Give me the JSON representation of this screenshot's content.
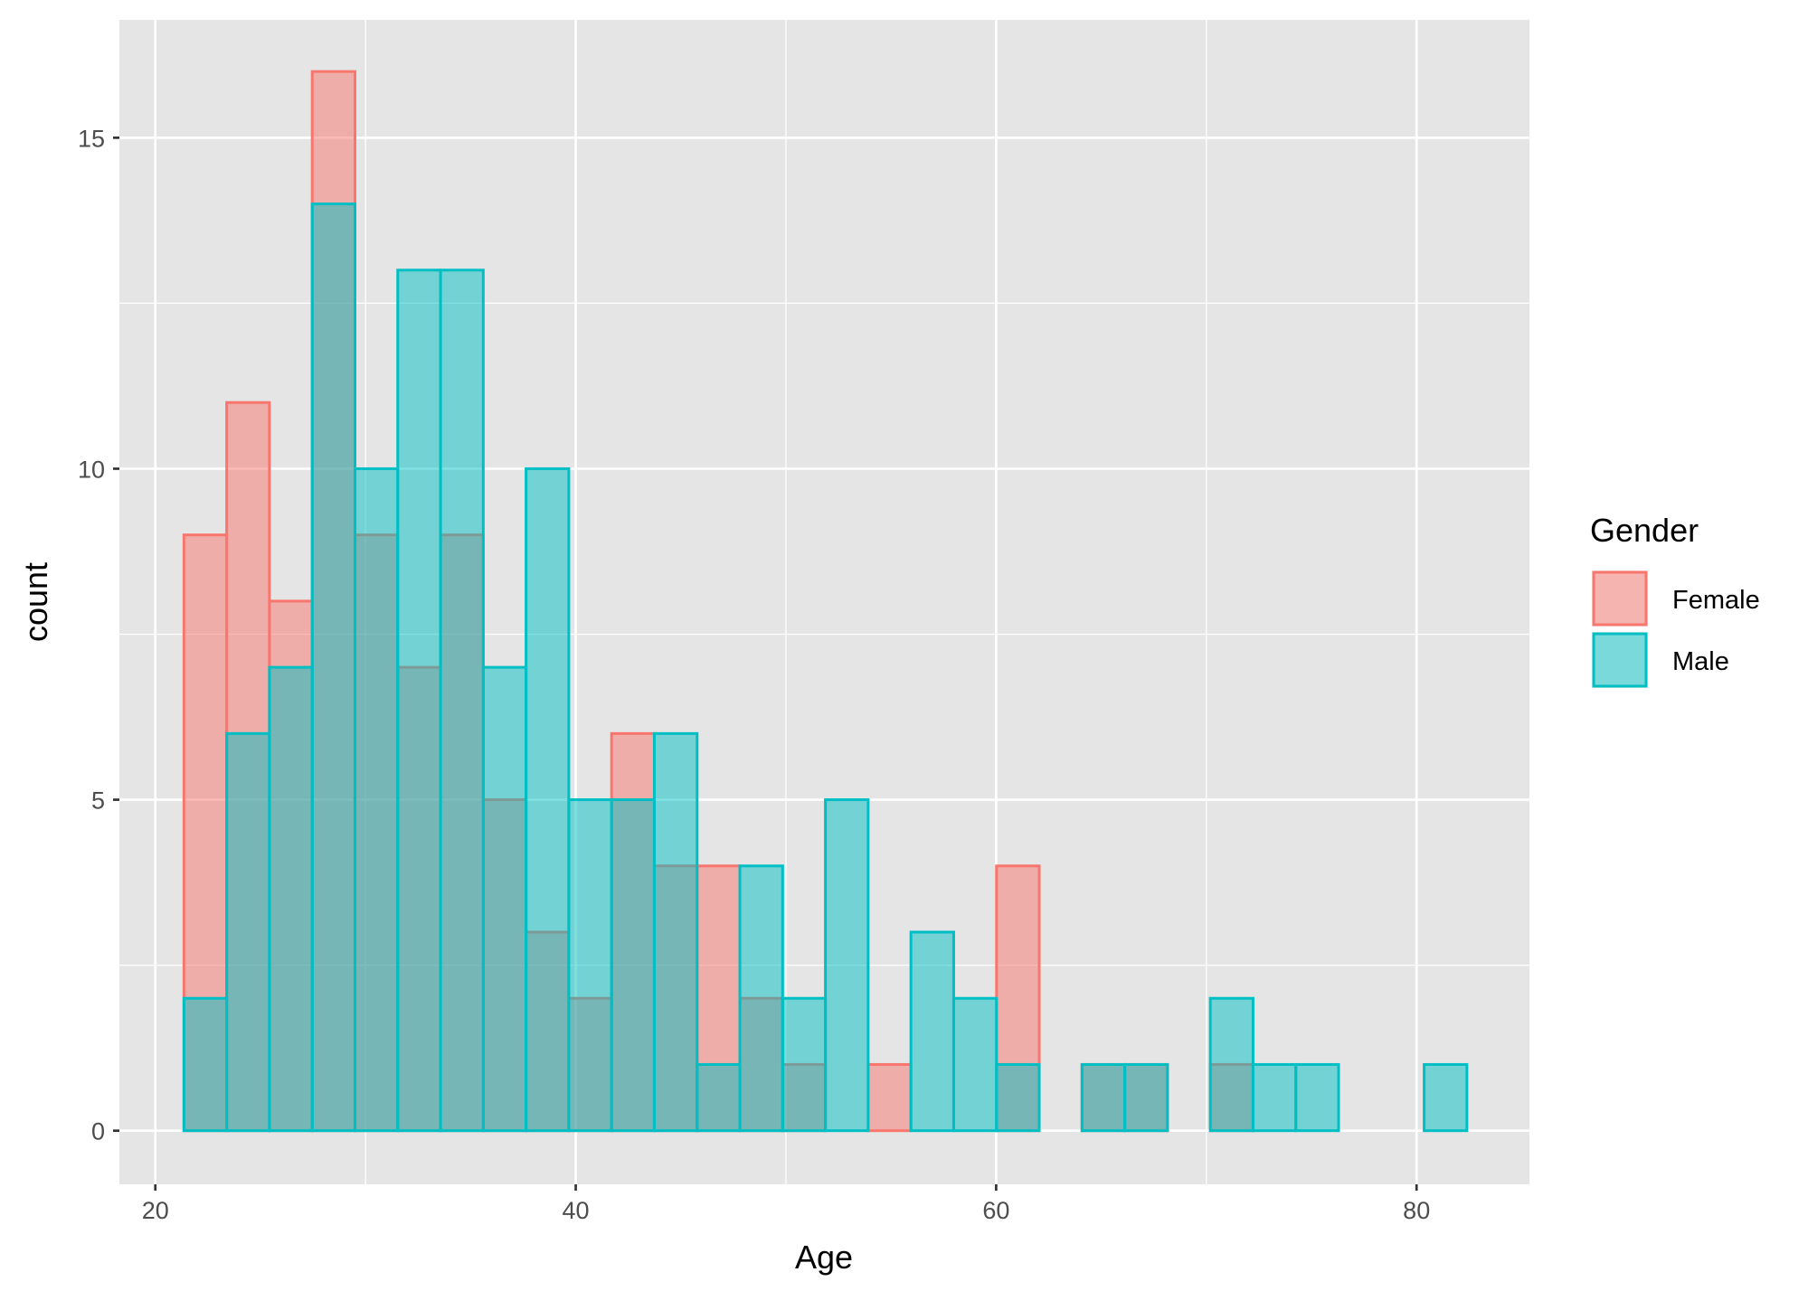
{
  "chart_data": {
    "type": "histogram",
    "title": "",
    "xlabel": "Age",
    "ylabel": "count",
    "xlim": [
      18.29,
      85.37
    ],
    "ylim": [
      -0.81,
      16.78
    ],
    "x_ticks": [
      "20",
      "40",
      "60",
      "80"
    ],
    "x_tick_values": [
      20,
      40,
      60,
      80
    ],
    "y_ticks": [
      "0",
      "5",
      "10",
      "15"
    ],
    "y_tick_values": [
      0,
      5,
      10,
      15
    ],
    "grid": true,
    "bins": 30,
    "bin_start": 21.36,
    "bin_width": 2.0345,
    "legend": {
      "title": "Gender",
      "placement": "right"
    },
    "series": [
      {
        "name": "Female",
        "color": "#F8766D",
        "values": [
          9,
          11,
          8,
          16,
          9,
          7,
          9,
          5,
          3,
          2,
          6,
          4,
          4,
          2,
          1,
          0,
          1,
          0,
          0,
          4,
          0,
          1,
          1,
          0,
          1,
          0,
          0,
          0,
          0,
          0
        ]
      },
      {
        "name": "Male",
        "color": "#00BFC4",
        "values": [
          2,
          6,
          7,
          14,
          10,
          13,
          13,
          7,
          10,
          5,
          5,
          6,
          1,
          4,
          2,
          5,
          0,
          3,
          2,
          1,
          0,
          1,
          1,
          0,
          2,
          1,
          1,
          0,
          0,
          1
        ]
      }
    ],
    "fill_alpha": 0.5,
    "panel_background": "#E5E5E5"
  }
}
